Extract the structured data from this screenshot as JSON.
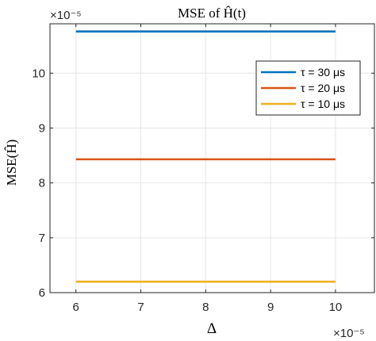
{
  "chart_data": {
    "type": "line",
    "title": "MSE of Ĥ(t)",
    "xlabel": "Δ",
    "ylabel": "MSE(Ĥ)",
    "x_exponent": "×10⁻⁵",
    "y_exponent": "×10⁻⁵",
    "x_scale": 1e-05,
    "y_scale": 1e-05,
    "xlim": [
      5.6,
      10.6
    ],
    "ylim": [
      6.0,
      10.9
    ],
    "xticks": [
      6,
      7,
      8,
      9,
      10
    ],
    "xtick_labels": [
      "6",
      "7",
      "8",
      "9",
      "10"
    ],
    "yticks": [
      6,
      7,
      8,
      9,
      10
    ],
    "ytick_labels": [
      "6",
      "7",
      "8",
      "9",
      "10"
    ],
    "grid": true,
    "legend_position": "top-right",
    "series": [
      {
        "name": "τ = 30 μs",
        "color": "#0072BD",
        "x": [
          6,
          10
        ],
        "y": [
          10.76,
          10.76
        ]
      },
      {
        "name": "τ = 20 μs",
        "color": "#D95319",
        "x": [
          6,
          10
        ],
        "y": [
          8.43,
          8.43
        ]
      },
      {
        "name": "τ = 10 μs",
        "color": "#EDB120",
        "x": [
          6,
          10
        ],
        "y": [
          6.2,
          6.2
        ]
      }
    ]
  }
}
